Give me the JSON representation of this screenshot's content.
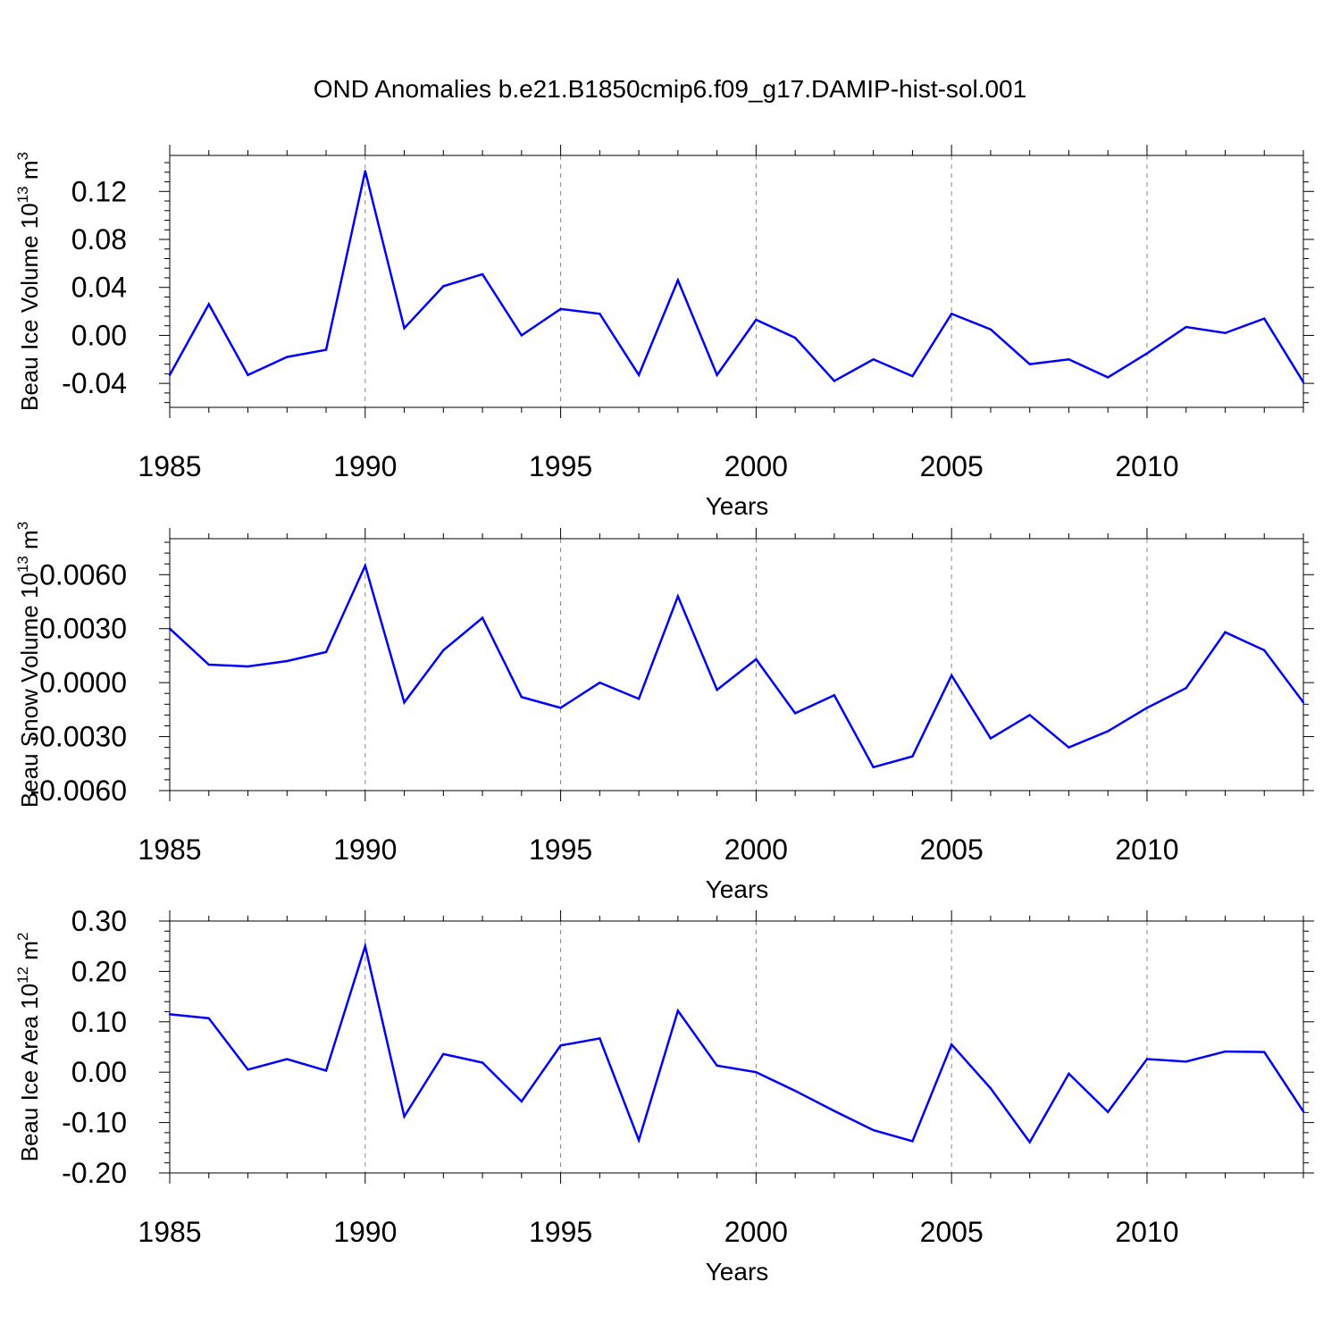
{
  "figure": {
    "title": "OND Anomalies b.e21.B1850cmip6.f09_g17.DAMIP-hist-sol.001",
    "line_color": "#0000ff",
    "grid_color": "#888888"
  },
  "chart_data": [
    {
      "type": "line",
      "title": "",
      "xlabel": "Years",
      "ylabel": "Beau Ice Volume 10",
      "ylabel_exp": "13",
      "ylabel_unit": " m",
      "ylabel_unit_exp": "3",
      "xlim": [
        1985,
        2014
      ],
      "ylim": [
        -0.06,
        0.15
      ],
      "yticks": [
        -0.04,
        0.0,
        0.04,
        0.08,
        0.12
      ],
      "ytick_labels": [
        "-0.04",
        "0.00",
        "0.04",
        "0.08",
        "0.12"
      ],
      "xticks": [
        1985,
        1990,
        1995,
        2000,
        2005,
        2010
      ],
      "xtick_labels": [
        "1985",
        "1990",
        "1995",
        "2000",
        "2005",
        "2010"
      ],
      "grid_x": [
        1990,
        1995,
        2000,
        2005,
        2010
      ],
      "x": [
        1985,
        1986,
        1987,
        1988,
        1989,
        1990,
        1991,
        1992,
        1993,
        1994,
        1995,
        1996,
        1997,
        1998,
        1999,
        2000,
        2001,
        2002,
        2003,
        2004,
        2005,
        2006,
        2007,
        2008,
        2009,
        2010,
        2011,
        2012,
        2013,
        2014
      ],
      "values": [
        -0.033,
        0.026,
        -0.033,
        -0.018,
        -0.012,
        0.137,
        0.006,
        0.041,
        0.051,
        0.0,
        0.022,
        0.018,
        -0.033,
        0.046,
        -0.033,
        0.013,
        -0.002,
        -0.038,
        -0.02,
        -0.034,
        0.018,
        0.005,
        -0.024,
        -0.02,
        -0.035,
        -0.015,
        0.007,
        0.002,
        0.014,
        -0.039
      ]
    },
    {
      "type": "line",
      "title": "",
      "xlabel": "Years",
      "ylabel": "Beau Snow Volume 10",
      "ylabel_exp": "13",
      "ylabel_unit": " m",
      "ylabel_unit_exp": "3",
      "xlim": [
        1985,
        2014
      ],
      "ylim": [
        -0.006,
        0.008
      ],
      "yticks": [
        -0.006,
        -0.003,
        0.0,
        0.003,
        0.006
      ],
      "ytick_labels": [
        "-0.0060",
        "-0.0030",
        "0.0000",
        "0.0030",
        "0.0060"
      ],
      "xticks": [
        1985,
        1990,
        1995,
        2000,
        2005,
        2010
      ],
      "xtick_labels": [
        "1985",
        "1990",
        "1995",
        "2000",
        "2005",
        "2010"
      ],
      "grid_x": [
        1990,
        1995,
        2000,
        2005,
        2010
      ],
      "x": [
        1985,
        1986,
        1987,
        1988,
        1989,
        1990,
        1991,
        1992,
        1993,
        1994,
        1995,
        1996,
        1997,
        1998,
        1999,
        2000,
        2001,
        2002,
        2003,
        2004,
        2005,
        2006,
        2007,
        2008,
        2009,
        2010,
        2011,
        2012,
        2013,
        2014
      ],
      "values": [
        0.003,
        0.001,
        0.0009,
        0.0012,
        0.0017,
        0.0065,
        -0.0011,
        0.0018,
        0.0036,
        -0.0008,
        -0.0014,
        0.0,
        -0.0009,
        0.0048,
        -0.0004,
        0.0013,
        -0.0017,
        -0.0007,
        -0.0047,
        -0.0041,
        0.0004,
        -0.0031,
        -0.0018,
        -0.0036,
        -0.0027,
        -0.0014,
        -0.0003,
        0.0028,
        0.0018,
        -0.0011
      ]
    },
    {
      "type": "line",
      "title": "",
      "xlabel": "Years",
      "ylabel": "Beau Ice Area 10",
      "ylabel_exp": "12",
      "ylabel_unit": " m",
      "ylabel_unit_exp": "2",
      "xlim": [
        1985,
        2014
      ],
      "ylim": [
        -0.2,
        0.3
      ],
      "yticks": [
        -0.2,
        -0.1,
        0.0,
        0.1,
        0.2,
        0.3
      ],
      "ytick_labels": [
        "-0.20",
        "-0.10",
        "0.00",
        "0.10",
        "0.20",
        "0.30"
      ],
      "xticks": [
        1985,
        1990,
        1995,
        2000,
        2005,
        2010
      ],
      "xtick_labels": [
        "1985",
        "1990",
        "1995",
        "2000",
        "2005",
        "2010"
      ],
      "grid_x": [
        1990,
        1995,
        2000,
        2005,
        2010
      ],
      "x": [
        1985,
        1986,
        1987,
        1988,
        1989,
        1990,
        1991,
        1992,
        1993,
        1994,
        1995,
        1996,
        1997,
        1998,
        1999,
        2000,
        2001,
        2002,
        2003,
        2004,
        2005,
        2006,
        2007,
        2008,
        2009,
        2010,
        2011,
        2012,
        2013,
        2014
      ],
      "values": [
        0.115,
        0.107,
        0.005,
        0.026,
        0.003,
        0.25,
        -0.088,
        0.036,
        0.019,
        -0.058,
        0.053,
        0.067,
        -0.135,
        0.122,
        0.013,
        0.0,
        -0.037,
        -0.077,
        -0.115,
        -0.137,
        0.055,
        -0.032,
        -0.139,
        -0.003,
        -0.079,
        0.026,
        0.021,
        0.041,
        0.04,
        -0.078
      ]
    }
  ]
}
